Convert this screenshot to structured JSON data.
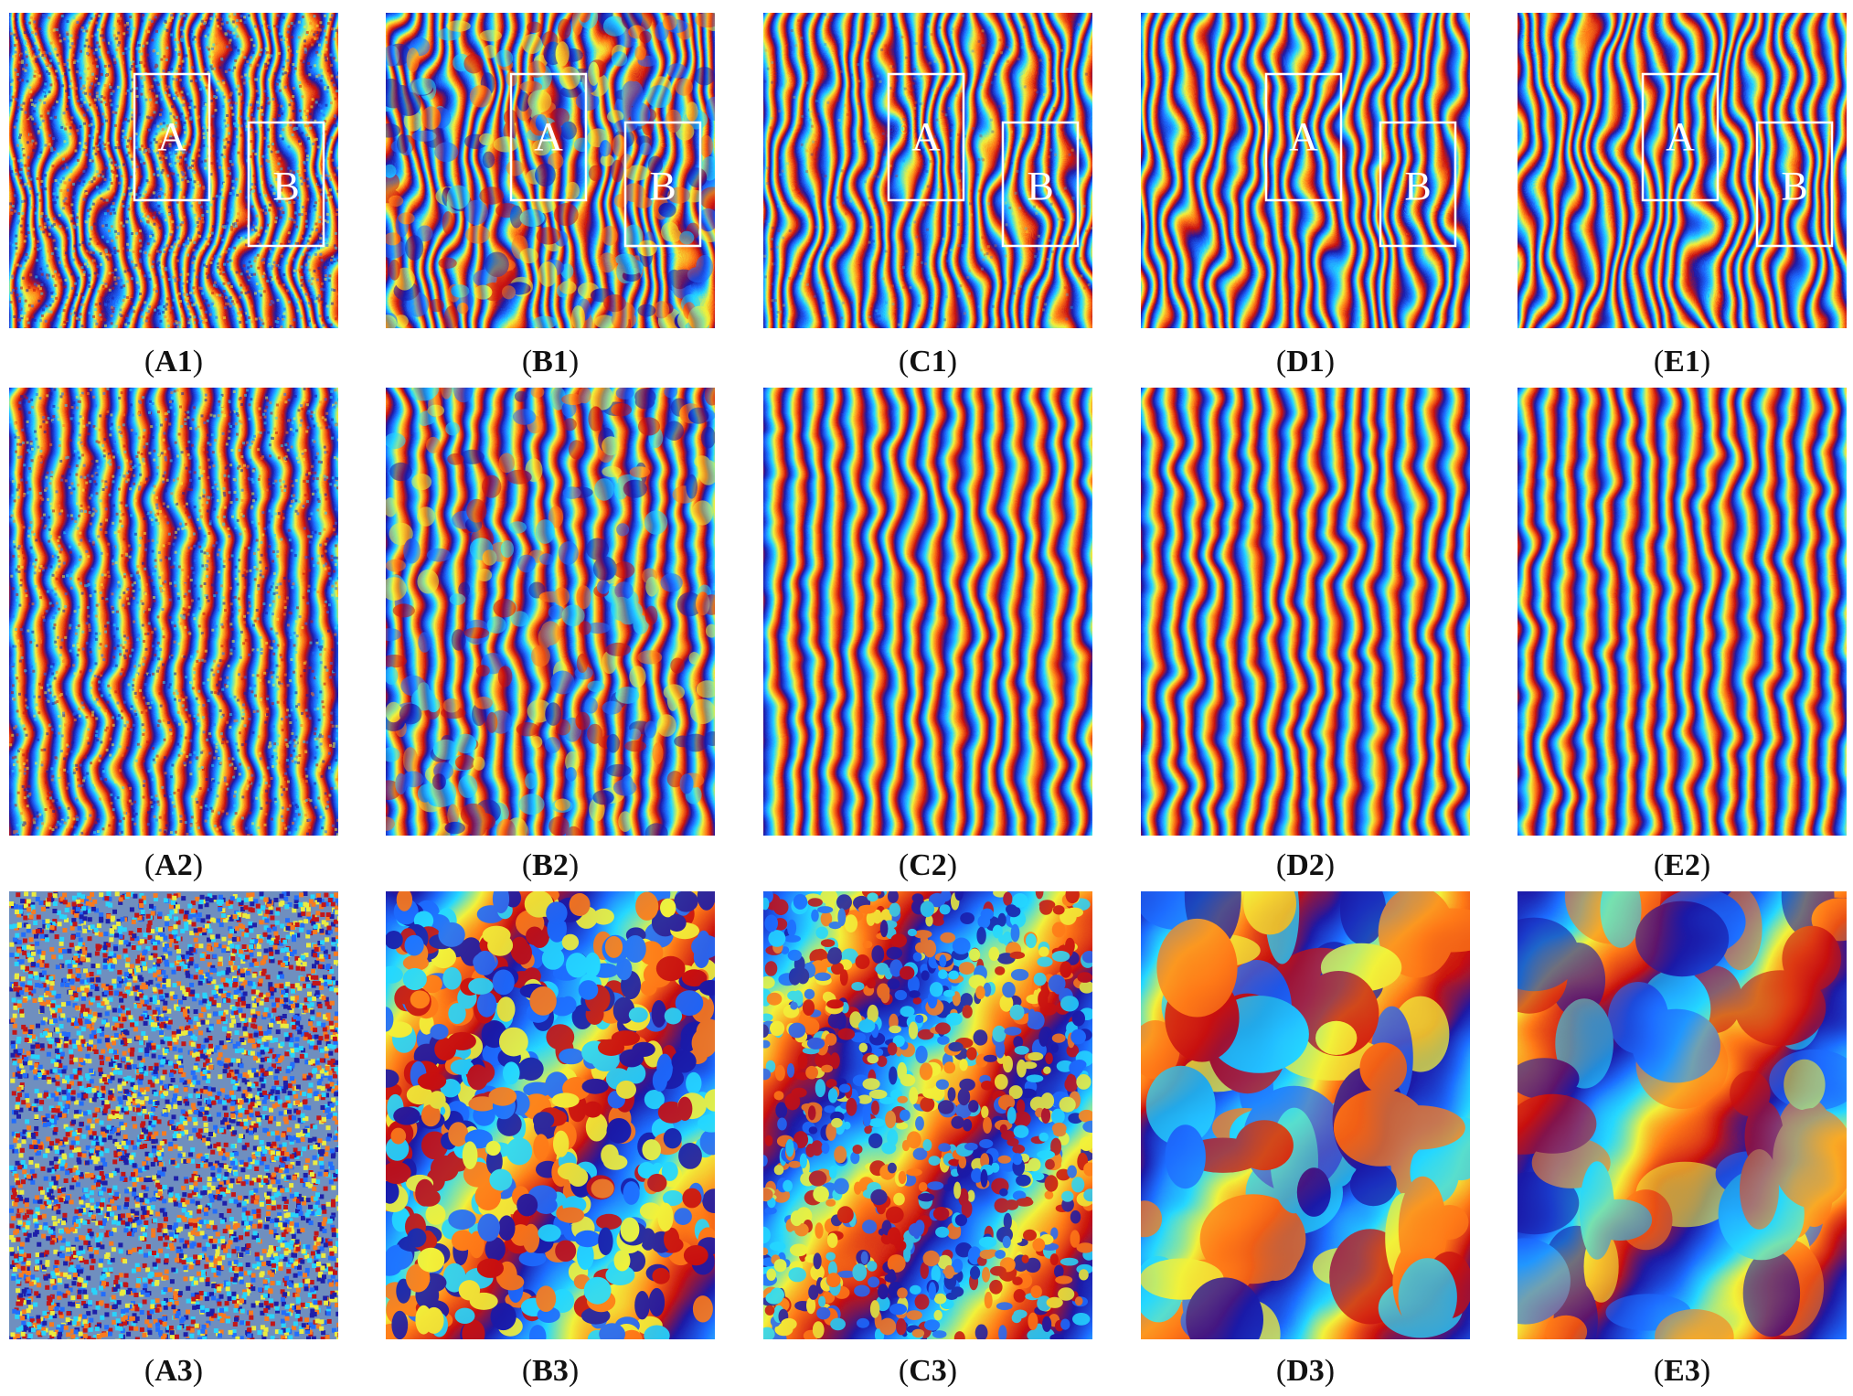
{
  "figure": {
    "colormap": [
      "#1a1aa8",
      "#1e6cff",
      "#25d8ff",
      "#f2f23a",
      "#ff7a18",
      "#c81010"
    ],
    "rows": [
      {
        "row": 1,
        "panels": [
          {
            "id": "A1",
            "paren_open": "(",
            "label": "A1",
            "paren_close": ")",
            "style": "noisy-wide",
            "roi": {
              "A": "A",
              "B": "B"
            }
          },
          {
            "id": "B1",
            "paren_open": "(",
            "label": "B1",
            "paren_close": ")",
            "style": "blocky-wide",
            "roi": {
              "A": "A",
              "B": "B"
            }
          },
          {
            "id": "C1",
            "paren_open": "(",
            "label": "C1",
            "paren_close": ")",
            "style": "smooth-wide",
            "roi": {
              "A": "A",
              "B": "B"
            }
          },
          {
            "id": "D1",
            "paren_open": "(",
            "label": "D1",
            "paren_close": ")",
            "style": "clean-wide",
            "roi": {
              "A": "A",
              "B": "B"
            }
          },
          {
            "id": "E1",
            "paren_open": "(",
            "label": "E1",
            "paren_close": ")",
            "style": "clean-wide",
            "roi": {
              "A": "A",
              "B": "B"
            }
          }
        ]
      },
      {
        "row": 2,
        "panels": [
          {
            "id": "A2",
            "paren_open": "(",
            "label": "A2",
            "paren_close": ")",
            "style": "noisy-fringe"
          },
          {
            "id": "B2",
            "paren_open": "(",
            "label": "B2",
            "paren_close": ")",
            "style": "blocky-fringe"
          },
          {
            "id": "C2",
            "paren_open": "(",
            "label": "C2",
            "paren_close": ")",
            "style": "smooth-fringe"
          },
          {
            "id": "D2",
            "paren_open": "(",
            "label": "D2",
            "paren_close": ")",
            "style": "clean-fringe"
          },
          {
            "id": "E2",
            "paren_open": "(",
            "label": "E2",
            "paren_close": ")",
            "style": "clean-fringe"
          }
        ]
      },
      {
        "row": 3,
        "panels": [
          {
            "id": "A3",
            "paren_open": "(",
            "label": "A3",
            "paren_close": ")",
            "style": "pure-noise"
          },
          {
            "id": "B3",
            "paren_open": "(",
            "label": "B3",
            "paren_close": ")",
            "style": "blobs"
          },
          {
            "id": "C3",
            "paren_open": "(",
            "label": "C3",
            "paren_close": ")",
            "style": "small-blobs"
          },
          {
            "id": "D3",
            "paren_open": "(",
            "label": "D3",
            "paren_close": ")",
            "style": "patches"
          },
          {
            "id": "E3",
            "paren_open": "(",
            "label": "E3",
            "paren_close": ")",
            "style": "patches-blue"
          }
        ]
      }
    ]
  }
}
